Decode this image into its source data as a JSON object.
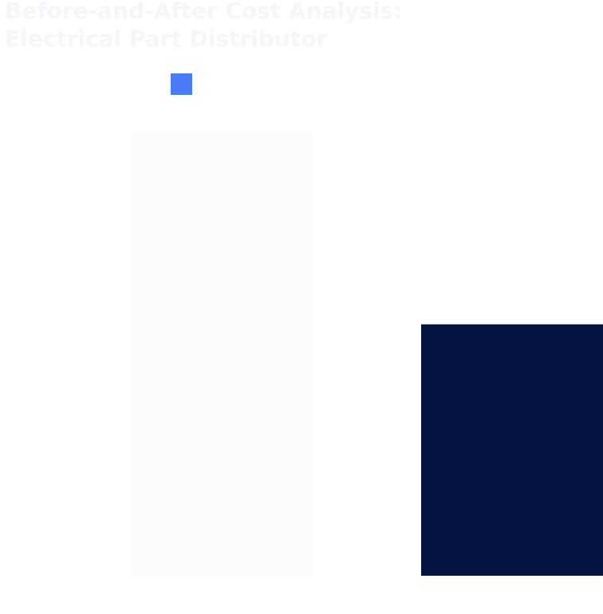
{
  "colors": {
    "background": "#ffffff",
    "title_text": "#f5f6fb",
    "legend_swatch": "#4a7cf7",
    "bar_before": "#fcfcfe",
    "bar_after": "#041342"
  },
  "chart_data": {
    "type": "bar",
    "title": "Before-and-After Cost Analysis:",
    "subtitle": "Electrical Part Distributor",
    "categories": [
      "",
      ""
    ],
    "values": [
      100,
      56.5
    ],
    "bar_colors": [
      "#fcfcfe",
      "#041342"
    ],
    "legend_color": "#4a7cf7",
    "ylim": [
      0,
      100
    ],
    "grid": false,
    "legend_placement": "top-left"
  }
}
